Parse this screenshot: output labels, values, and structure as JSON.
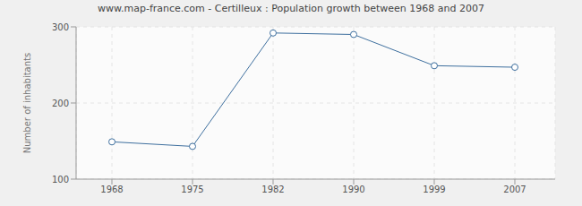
{
  "chart_data": {
    "type": "line",
    "title": "www.map-france.com - Certilleux : Population growth between 1968 and 2007",
    "y_label": "Number of inhabitants",
    "categories": [
      "1968",
      "1975",
      "1982",
      "1990",
      "1999",
      "2007"
    ],
    "values": [
      149,
      143,
      292,
      290,
      249,
      247
    ],
    "color": "#3e6f9e",
    "marker": "circle",
    "ylim": [
      100,
      300
    ],
    "yticks": [
      100,
      200,
      300
    ],
    "grid": true
  }
}
